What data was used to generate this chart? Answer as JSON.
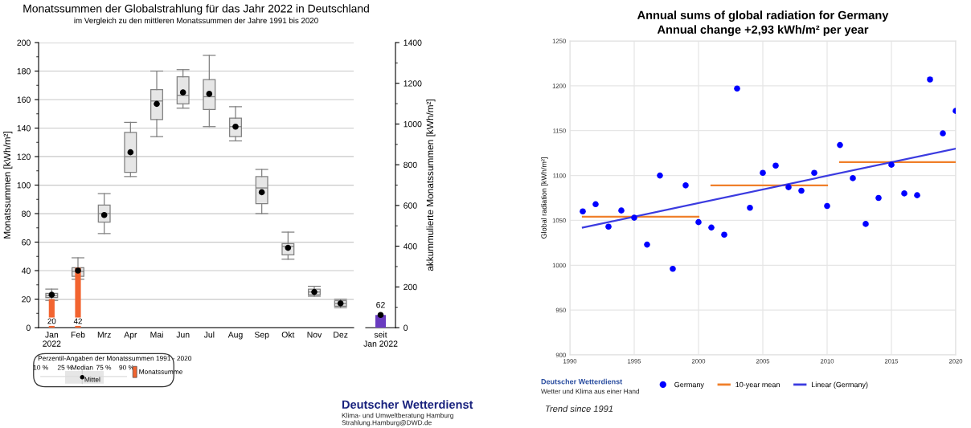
{
  "chart_data": [
    {
      "type": "box",
      "title": "Monatssummen der Globalstrahlung für das Jahr 2022 in Deutschland",
      "subtitle": "im Vergleich zu den mittleren Monatssummen der Jahre 1991 bis 2020",
      "categories": [
        "Jan\n2022",
        "Feb",
        "Mrz",
        "Apr",
        "Mai",
        "Jun",
        "Jul",
        "Aug",
        "Sep",
        "Okt",
        "Nov",
        "Dez"
      ],
      "ylabel": "Monatssummen [kWh/m²]",
      "ylim": [
        0,
        200
      ],
      "yticks": [
        0,
        20,
        40,
        60,
        80,
        100,
        120,
        140,
        160,
        180,
        200
      ],
      "grid": "y",
      "legend": "bottom left",
      "legend_title": "Perzentil-Angaben der Monatssummen 1991 - 2020",
      "annotations": [
        "10 %",
        "25 %",
        "Median",
        "75 %",
        "90 %",
        "Deutscher Wetterdienst",
        "Klima- und Umweltberatung Hamburg",
        "Strahlung.Hamburg@DWD.de"
      ],
      "series": [
        {
          "color": "#e6e6e6",
          "boxes": [
            {
              "low": 19,
              "q1": 21,
              "median": 22.5,
              "q3": 24,
              "high": 27
            },
            {
              "low": 34,
              "q1": 36,
              "median": 39.5,
              "q3": 42,
              "high": 49
            },
            {
              "low": 66,
              "q1": 74,
              "median": 80,
              "q3": 86,
              "high": 94
            },
            {
              "low": 106,
              "q1": 109,
              "median": 120,
              "q3": 137,
              "high": 144
            },
            {
              "low": 134,
              "q1": 146,
              "median": 159,
              "q3": 167,
              "high": 180
            },
            {
              "low": 154,
              "q1": 157,
              "median": 163,
              "q3": 176,
              "high": 181
            },
            {
              "low": 141,
              "q1": 153,
              "median": 162,
              "q3": 174,
              "high": 191
            },
            {
              "low": 131,
              "q1": 134,
              "median": 141,
              "q3": 147,
              "high": 155
            },
            {
              "low": 80,
              "q1": 87,
              "median": 98,
              "q3": 106,
              "high": 111
            },
            {
              "low": 48,
              "q1": 51,
              "median": 57,
              "q3": 59,
              "high": 67
            },
            {
              "low": 22,
              "q1": 23,
              "median": 25,
              "q3": 27,
              "high": 29
            },
            {
              "low": 14,
              "q1": 15,
              "median": 17,
              "q3": 19,
              "high": 20
            }
          ]
        },
        {
          "type": "bar",
          "name": "Monatssumme",
          "color": "#f26430",
          "values": [
            20,
            42,
            null,
            null,
            null,
            null,
            null,
            null,
            null,
            null,
            null,
            null
          ],
          "value_labels": [
            "20",
            "42",
            null,
            null,
            null,
            null,
            null,
            null,
            null,
            null,
            null,
            null
          ]
        },
        {
          "type": "scatter",
          "name": "Mittel",
          "color": "#000000",
          "marker": "circle",
          "x": [
            "Jan\n2022",
            "Feb",
            "Mrz",
            "Apr",
            "Mai",
            "Jun",
            "Jul",
            "Aug",
            "Sep",
            "Okt",
            "Nov",
            "Dez"
          ],
          "values": [
            23,
            40,
            79,
            123,
            157,
            165,
            164,
            141,
            95,
            56,
            25,
            17
          ]
        }
      ]
    },
    {
      "type": "bar",
      "categories": [
        "seit\nJan 2022"
      ],
      "y2label": "akkummulierte Monatssummen [kWh/m²]",
      "y2lim": [
        0,
        1400
      ],
      "y2ticks": [
        0,
        200,
        400,
        600,
        800,
        1000,
        1200,
        1400
      ],
      "series": [
        {
          "axis": "y2",
          "color": "#6a3cc0",
          "values": [
            62
          ],
          "value_labels": [
            "62"
          ]
        },
        {
          "type": "scatter",
          "axis": "y2",
          "color": "#000000",
          "marker": "circle",
          "x": [
            "seit\nJan 2022"
          ],
          "values": [
            62
          ]
        }
      ]
    },
    {
      "type": "scatter",
      "title": "Annual sums of global radiation for Germany",
      "subtitle": "Annual change +2,93 kWh/m² per year",
      "ylabel": "Global radiation [kWh/m²]",
      "xlim": [
        1990,
        2020
      ],
      "xticks": [
        1990,
        1995,
        2000,
        2005,
        2010,
        2015,
        2020
      ],
      "ylim": [
        900,
        1250
      ],
      "yticks": [
        900,
        950,
        1000,
        1050,
        1100,
        1150,
        1200,
        1250
      ],
      "grid": true,
      "legend": "bottom",
      "annotations": [
        "Deutscher Wetterdienst",
        "Wetter und Klima aus einer Hand",
        "Trend since 1991"
      ],
      "series": [
        {
          "name": "Germany",
          "color": "#0000ff",
          "marker": "circle",
          "x": [
            1991,
            1992,
            1993,
            1994,
            1995,
            1996,
            1997,
            1998,
            1999,
            2000,
            2001,
            2002,
            2003,
            2004,
            2005,
            2006,
            2007,
            2008,
            2009,
            2010,
            2011,
            2012,
            2013,
            2014,
            2015,
            2016,
            2017,
            2018,
            2019,
            2020
          ],
          "values": [
            1060,
            1068,
            1043,
            1061,
            1053,
            1023,
            1100,
            996,
            1089,
            1048,
            1042,
            1034,
            1197,
            1064,
            1103,
            1111,
            1087,
            1083,
            1103,
            1066,
            1134,
            1097,
            1046,
            1075,
            1112,
            1080,
            1078,
            1207,
            1147,
            1172
          ]
        },
        {
          "type": "line",
          "name": "10-year mean",
          "color": "#f07f2a",
          "line_style": "solid",
          "x": [
            1991,
            2000
          ],
          "values": [
            1054,
            1054
          ]
        },
        {
          "type": "line",
          "color": "#f07f2a",
          "line_style": "solid",
          "x": [
            2001,
            2010
          ],
          "values": [
            1089,
            1089
          ]
        },
        {
          "type": "line",
          "color": "#f07f2a",
          "line_style": "solid",
          "x": [
            2011,
            2020
          ],
          "values": [
            1115,
            1115
          ]
        },
        {
          "type": "line",
          "name": "Linear (Germany)",
          "color": "#3b3be0",
          "line_style": "solid",
          "x": [
            1991,
            2020
          ],
          "values": [
            1042,
            1130
          ]
        }
      ]
    }
  ]
}
